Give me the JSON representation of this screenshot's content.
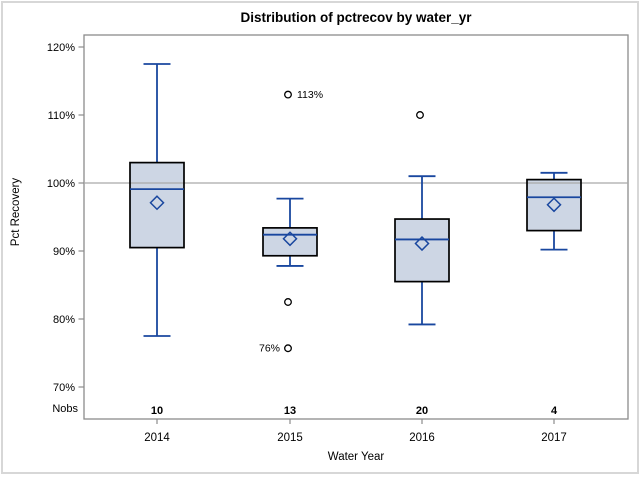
{
  "title": "Distribution of pctrecov by water_yr",
  "y_axis": {
    "label": "Pct Recovery"
  },
  "x_axis": {
    "label": "Water Year"
  },
  "nobs": {
    "label": "Nobs",
    "values": [
      "10",
      "13",
      "20",
      "4"
    ]
  },
  "colors": {
    "box_fill": "#cdd6e4",
    "box_border": "#000000",
    "blue": "#19479f",
    "reference_line": "#a9a9a9",
    "axis": "#8c8c8c",
    "outer_border": "#d7d7d7",
    "outlier_stroke": "#000000"
  },
  "chart_data": {
    "type": "boxplot",
    "title": "Distribution of pctrecov by water_yr",
    "xlabel": "Water Year",
    "ylabel": "Pct Recovery",
    "categories": [
      "2014",
      "2015",
      "2016",
      "2017"
    ],
    "y_ticks": [
      {
        "value": 120,
        "label": "120%"
      },
      {
        "value": 110,
        "label": "110%"
      },
      {
        "value": 100,
        "label": "100%"
      },
      {
        "value": 90,
        "label": "90%"
      },
      {
        "value": 80,
        "label": "80%"
      },
      {
        "value": 70,
        "label": "70%"
      }
    ],
    "reference_line_value": 100,
    "ylim": [
      65,
      122
    ],
    "grid": false,
    "series": [
      {
        "category": "2014",
        "nobs": 10,
        "whisker_low": 77.5,
        "q1": 90.5,
        "median": 99.1,
        "q3": 103.0,
        "whisker_high": 117.5,
        "mean": 97.1,
        "outliers": []
      },
      {
        "category": "2015",
        "nobs": 13,
        "whisker_low": 87.8,
        "q1": 89.3,
        "median": 92.4,
        "q3": 93.4,
        "whisker_high": 97.7,
        "mean": 91.8,
        "outliers": [
          {
            "value": 113,
            "label": "113%",
            "side": "right"
          },
          {
            "value": 82.5
          },
          {
            "value": 75.7,
            "label": "76%",
            "side": "left"
          }
        ]
      },
      {
        "category": "2016",
        "nobs": 20,
        "whisker_low": 79.2,
        "q1": 85.5,
        "median": 91.7,
        "q3": 94.7,
        "whisker_high": 101.0,
        "mean": 91.1,
        "outliers": [
          {
            "value": 110
          }
        ]
      },
      {
        "category": "2017",
        "nobs": 4,
        "whisker_low": 90.2,
        "q1": 93.0,
        "median": 97.9,
        "q3": 100.5,
        "whisker_high": 101.5,
        "mean": 96.8,
        "outliers": []
      }
    ]
  }
}
